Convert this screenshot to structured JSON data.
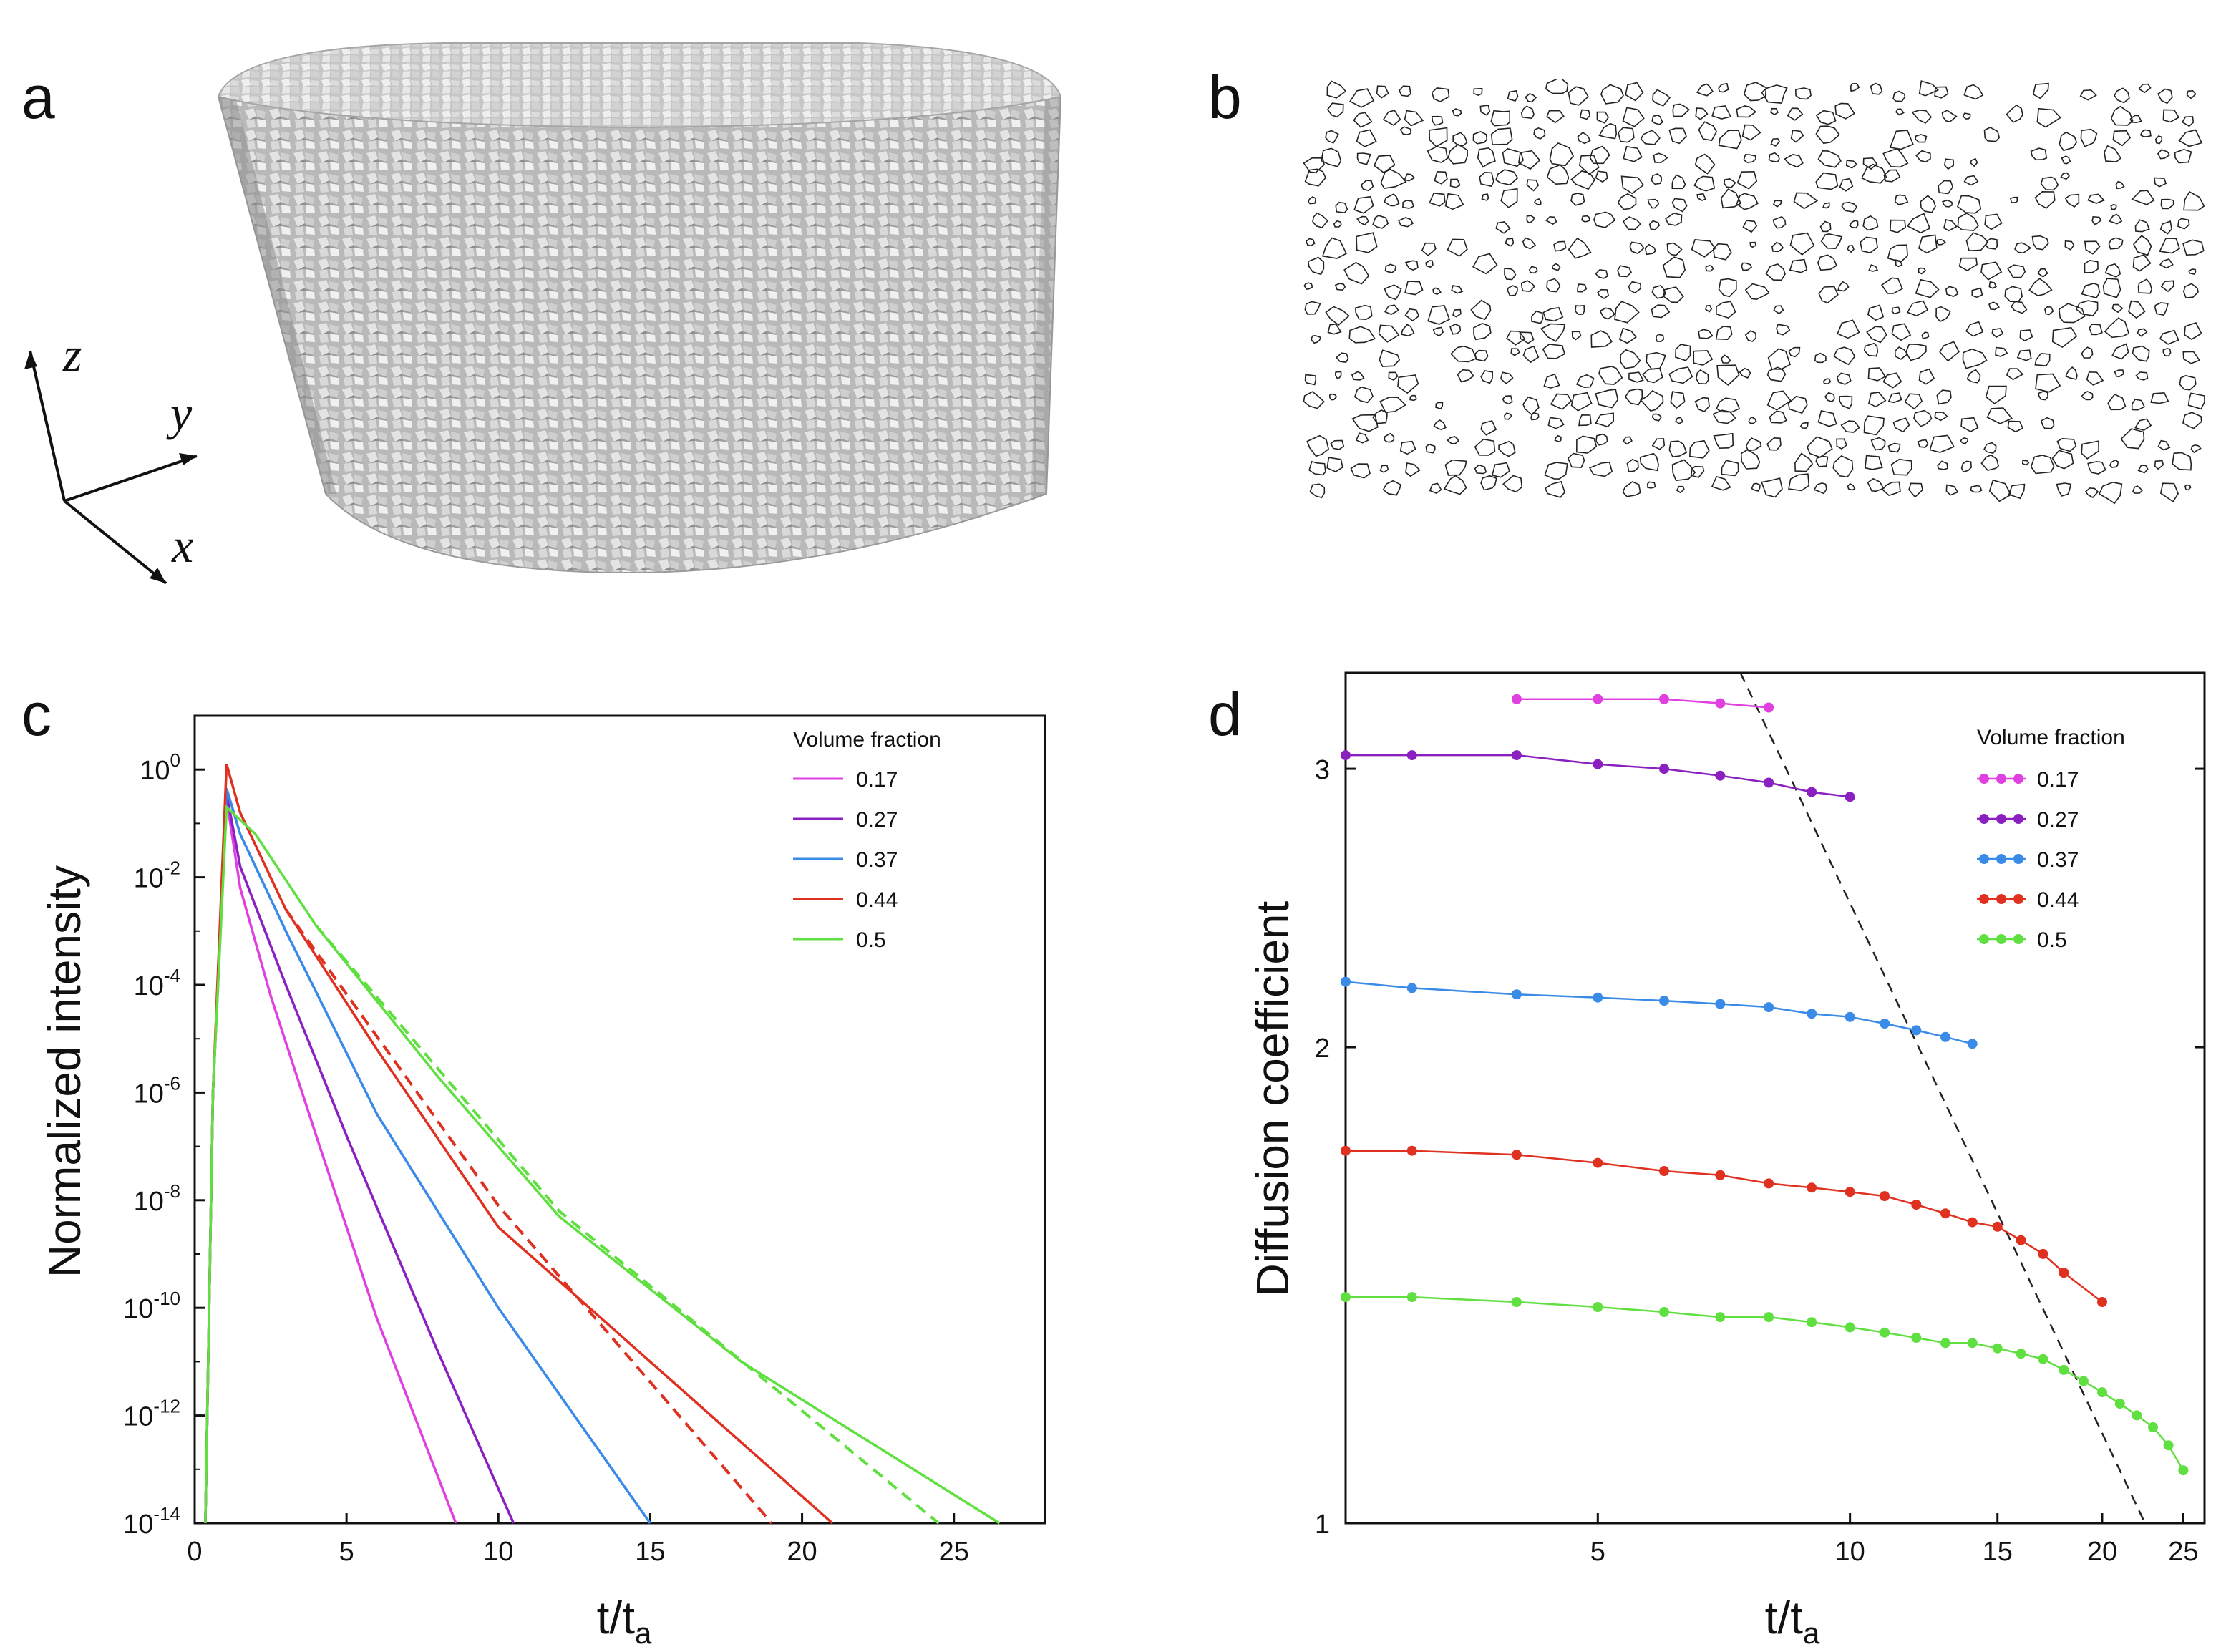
{
  "panels": {
    "a": {
      "label": "a",
      "axes": [
        "z",
        "y",
        "x"
      ]
    },
    "b": {
      "label": "b"
    },
    "c": {
      "label": "c"
    },
    "d": {
      "label": "d"
    }
  },
  "colors": {
    "0.17": "#e040e0",
    "0.27": "#8a20c0",
    "0.37": "#3a8ae8",
    "0.44": "#e03020",
    "0.5": "#60e040",
    "dash": "#222222"
  },
  "chart_data": [
    {
      "id": "c",
      "type": "line",
      "title": "",
      "xlabel_main": "t/t",
      "xlabel_sub": "a",
      "ylabel": "Normalized intensity",
      "yscale": "log",
      "xlim": [
        0,
        28
      ],
      "ylim_exp": [
        -14,
        1
      ],
      "xticks": [
        0,
        5,
        10,
        15,
        20,
        25
      ],
      "yticks_exp": [
        0,
        -2,
        -4,
        -6,
        -8,
        -10,
        -12,
        -14
      ],
      "legend_title": "Volume fraction",
      "series": [
        {
          "name": "0.17",
          "peak_t": 1.05,
          "peak_log": -0.55,
          "pts": [
            [
              1.05,
              -0.55
            ],
            [
              1.5,
              -2.2
            ],
            [
              2.5,
              -4.2
            ],
            [
              4,
              -6.8
            ],
            [
              6,
              -10.2
            ],
            [
              8.6,
              -14
            ]
          ]
        },
        {
          "name": "0.27",
          "peak_t": 1.05,
          "peak_log": -0.45,
          "pts": [
            [
              1.05,
              -0.45
            ],
            [
              1.5,
              -1.8
            ],
            [
              3,
              -4.0
            ],
            [
              5,
              -6.8
            ],
            [
              8,
              -10.8
            ],
            [
              10.5,
              -14
            ]
          ]
        },
        {
          "name": "0.37",
          "peak_t": 1.05,
          "peak_log": -0.35,
          "pts": [
            [
              1.05,
              -0.35
            ],
            [
              1.5,
              -1.2
            ],
            [
              3,
              -3.0
            ],
            [
              6,
              -6.4
            ],
            [
              10,
              -10.0
            ],
            [
              15,
              -14
            ]
          ]
        },
        {
          "name": "0.44",
          "peak_t": 1.05,
          "peak_log": 0.1,
          "pts": [
            [
              1.05,
              0.1
            ],
            [
              1.5,
              -0.8
            ],
            [
              3,
              -2.6
            ],
            [
              6,
              -5.2
            ],
            [
              10,
              -8.5
            ],
            [
              15,
              -11.0
            ],
            [
              21,
              -14
            ]
          ]
        },
        {
          "name": "0.5",
          "peak_t": 1.05,
          "peak_log": -0.7,
          "pts": [
            [
              1.05,
              -0.7
            ],
            [
              2,
              -1.2
            ],
            [
              4,
              -2.9
            ],
            [
              8,
              -5.7
            ],
            [
              12,
              -8.3
            ],
            [
              18,
              -11.0
            ],
            [
              26.5,
              -14
            ]
          ]
        }
      ],
      "dashed_fits": [
        {
          "name": "0.44",
          "pts": [
            [
              3,
              -2.6
            ],
            [
              10,
              -8.1
            ],
            [
              19,
              -14
            ]
          ]
        },
        {
          "name": "0.5",
          "pts": [
            [
              4,
              -2.9
            ],
            [
              12,
              -8.2
            ],
            [
              24.5,
              -14
            ]
          ]
        }
      ]
    },
    {
      "id": "d",
      "type": "line",
      "xlabel_main": "t/t",
      "xlabel_sub": "a",
      "ylabel": "Diffusion coefficient",
      "xscale": "log",
      "yscale": "log",
      "xlim": [
        2.5,
        26.5
      ],
      "ylim": [
        1,
        3.45
      ],
      "xticks": [
        5,
        10,
        15,
        20,
        25
      ],
      "yticks": [
        1,
        2,
        3
      ],
      "legend_title": "Volume fraction",
      "series": [
        {
          "name": "0.17",
          "x": [
            4,
            5,
            6,
            7,
            8
          ],
          "values": [
            3.32,
            3.32,
            3.32,
            3.3,
            3.28
          ]
        },
        {
          "name": "0.27",
          "x": [
            2.5,
            3,
            4,
            5,
            6,
            7,
            8,
            9,
            10
          ],
          "values": [
            3.06,
            3.06,
            3.06,
            3.02,
            3.0,
            2.97,
            2.94,
            2.9,
            2.88
          ]
        },
        {
          "name": "0.37",
          "x": [
            2.5,
            3,
            4,
            5,
            6,
            7,
            8,
            9,
            10,
            11,
            12,
            13,
            14
          ],
          "values": [
            2.2,
            2.18,
            2.16,
            2.15,
            2.14,
            2.13,
            2.12,
            2.1,
            2.09,
            2.07,
            2.05,
            2.03,
            2.01
          ]
        },
        {
          "name": "0.44",
          "x": [
            2.5,
            3,
            4,
            5,
            6,
            7,
            8,
            9,
            10,
            11,
            12,
            13,
            14,
            15,
            16,
            17,
            18,
            20
          ],
          "values": [
            1.72,
            1.72,
            1.71,
            1.69,
            1.67,
            1.66,
            1.64,
            1.63,
            1.62,
            1.61,
            1.59,
            1.57,
            1.55,
            1.54,
            1.51,
            1.48,
            1.44,
            1.38
          ]
        },
        {
          "name": "0.5",
          "x": [
            2.5,
            3,
            4,
            5,
            6,
            7,
            8,
            9,
            10,
            11,
            12,
            13,
            14,
            15,
            16,
            17,
            18,
            19,
            20,
            21,
            22,
            23,
            24,
            25
          ],
          "values": [
            1.39,
            1.39,
            1.38,
            1.37,
            1.36,
            1.35,
            1.35,
            1.34,
            1.33,
            1.32,
            1.31,
            1.3,
            1.3,
            1.29,
            1.28,
            1.27,
            1.25,
            1.23,
            1.21,
            1.19,
            1.17,
            1.15,
            1.12,
            1.08
          ]
        }
      ],
      "dashed_line": {
        "pts": [
          [
            7.4,
            3.45
          ],
          [
            22.5,
            1.0
          ]
        ]
      }
    }
  ]
}
